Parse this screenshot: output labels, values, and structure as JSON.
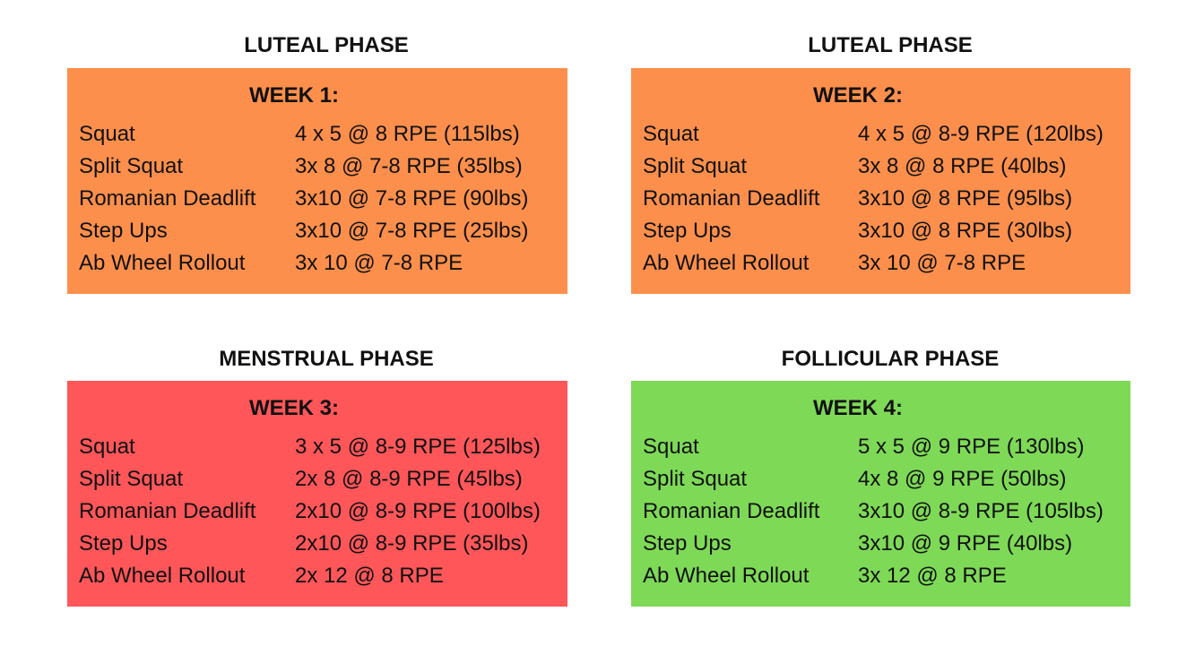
{
  "colors": {
    "luteal": "#fd8f4c",
    "menstrual": "#fe5659",
    "follicular": "#7ed957",
    "text": "#111111",
    "background": "#ffffff"
  },
  "blocks": [
    {
      "phase": "LUTEAL PHASE",
      "week": "WEEK 1:",
      "rows": [
        {
          "exercise": "Squat",
          "prescription": "4 x 5 @ 8 RPE (115lbs)"
        },
        {
          "exercise": "Split Squat",
          "prescription": "3x 8 @ 7-8 RPE (35lbs)"
        },
        {
          "exercise": "Romanian Deadlift",
          "prescription": "3x10 @ 7-8 RPE (90lbs)"
        },
        {
          "exercise": "Step Ups",
          "prescription": "3x10 @ 7-8 RPE (25lbs)"
        },
        {
          "exercise": "Ab Wheel Rollout",
          "prescription": "3x 10 @ 7-8 RPE"
        }
      ]
    },
    {
      "phase": "LUTEAL PHASE",
      "week": "WEEK 2:",
      "rows": [
        {
          "exercise": "Squat",
          "prescription": "4 x 5 @ 8-9 RPE (120lbs)"
        },
        {
          "exercise": "Split Squat",
          "prescription": "3x 8 @ 8 RPE (40lbs)"
        },
        {
          "exercise": "Romanian Deadlift",
          "prescription": "3x10 @ 8 RPE (95lbs)"
        },
        {
          "exercise": "Step Ups",
          "prescription": "3x10 @ 8 RPE (30lbs)"
        },
        {
          "exercise": "Ab Wheel Rollout",
          "prescription": "3x 10 @ 7-8 RPE"
        }
      ]
    },
    {
      "phase": "MENSTRUAL PHASE",
      "week": "WEEK 3:",
      "rows": [
        {
          "exercise": "Squat",
          "prescription": "3 x 5 @ 8-9 RPE (125lbs)"
        },
        {
          "exercise": "Split Squat",
          "prescription": "2x 8 @ 8-9 RPE (45lbs)"
        },
        {
          "exercise": "Romanian Deadlift",
          "prescription": "2x10 @ 8-9 RPE (100lbs)"
        },
        {
          "exercise": "Step Ups",
          "prescription": "2x10 @ 8-9 RPE (35lbs)"
        },
        {
          "exercise": "Ab Wheel Rollout",
          "prescription": "2x 12 @ 8 RPE"
        }
      ]
    },
    {
      "phase": "FOLLICULAR PHASE",
      "week": "WEEK 4:",
      "rows": [
        {
          "exercise": "Squat",
          "prescription": "5 x 5 @ 9 RPE (130lbs)"
        },
        {
          "exercise": "Split Squat",
          "prescription": "4x 8 @ 9 RPE (50lbs)"
        },
        {
          "exercise": "Romanian Deadlift",
          "prescription": "3x10 @ 8-9 RPE (105lbs)"
        },
        {
          "exercise": "Step Ups",
          "prescription": "3x10 @ 9 RPE (40lbs)"
        },
        {
          "exercise": "Ab Wheel Rollout",
          "prescription": "3x 12 @ 8 RPE"
        }
      ]
    }
  ]
}
